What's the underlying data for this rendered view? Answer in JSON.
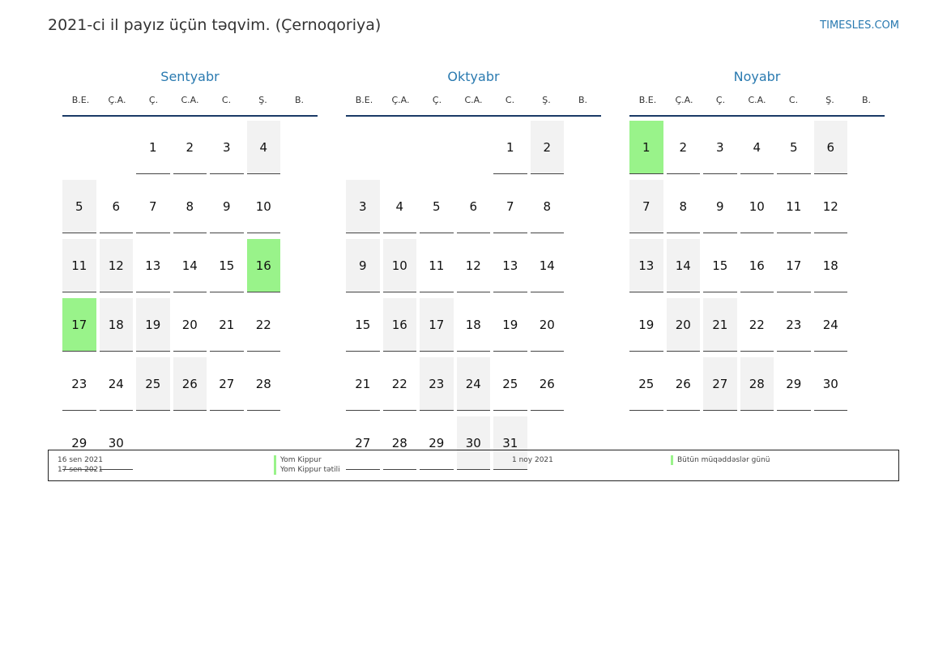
{
  "header": {
    "title": "2021-ci il payız üçün təqvim. (Çernoqoriya)",
    "site": "TIMESLES.COM"
  },
  "weekdays": [
    "B.E.",
    "Ç.A.",
    "Ç.",
    "C.A.",
    "C.",
    "Ş.",
    "B."
  ],
  "months": [
    {
      "name": "Sentyabr",
      "days": [
        "",
        "",
        "1",
        "2",
        "3",
        "4",
        "5",
        "6",
        "7",
        "8",
        "9",
        "10",
        "11",
        "12",
        "13",
        "14",
        "15",
        "16",
        "17",
        "18",
        "19",
        "20",
        "21",
        "22",
        "23",
        "24",
        "25",
        "26",
        "27",
        "28",
        "29",
        "30"
      ],
      "holidays": [
        "16",
        "17"
      ]
    },
    {
      "name": "Oktyabr",
      "days": [
        "",
        "",
        "",
        "",
        "1",
        "2",
        "3",
        "4",
        "5",
        "6",
        "7",
        "8",
        "9",
        "10",
        "11",
        "12",
        "13",
        "14",
        "15",
        "16",
        "17",
        "18",
        "19",
        "20",
        "21",
        "22",
        "23",
        "24",
        "25",
        "26",
        "27",
        "28",
        "29",
        "30",
        "31"
      ],
      "holidays": []
    },
    {
      "name": "Noyabr",
      "days": [
        "1",
        "2",
        "3",
        "4",
        "5",
        "6",
        "7",
        "8",
        "9",
        "10",
        "11",
        "12",
        "13",
        "14",
        "15",
        "16",
        "17",
        "18",
        "19",
        "20",
        "21",
        "22",
        "23",
        "24",
        "25",
        "26",
        "27",
        "28",
        "29",
        "30"
      ],
      "holidays": [
        "1"
      ]
    }
  ],
  "legend": {
    "left_dates": [
      "16 sen 2021",
      "17 sen 2021"
    ],
    "left_names": [
      "Yom Kippur",
      "Yom Kippur tətili"
    ],
    "right_dates": [
      "1 noy 2021"
    ],
    "right_names": [
      "Bütün müqəddəslər günü"
    ]
  },
  "colors": {
    "holiday": "#99f38a",
    "weekend": "#f2f2f2",
    "accent": "#2a7ab0",
    "rule": "#1a3a66"
  }
}
